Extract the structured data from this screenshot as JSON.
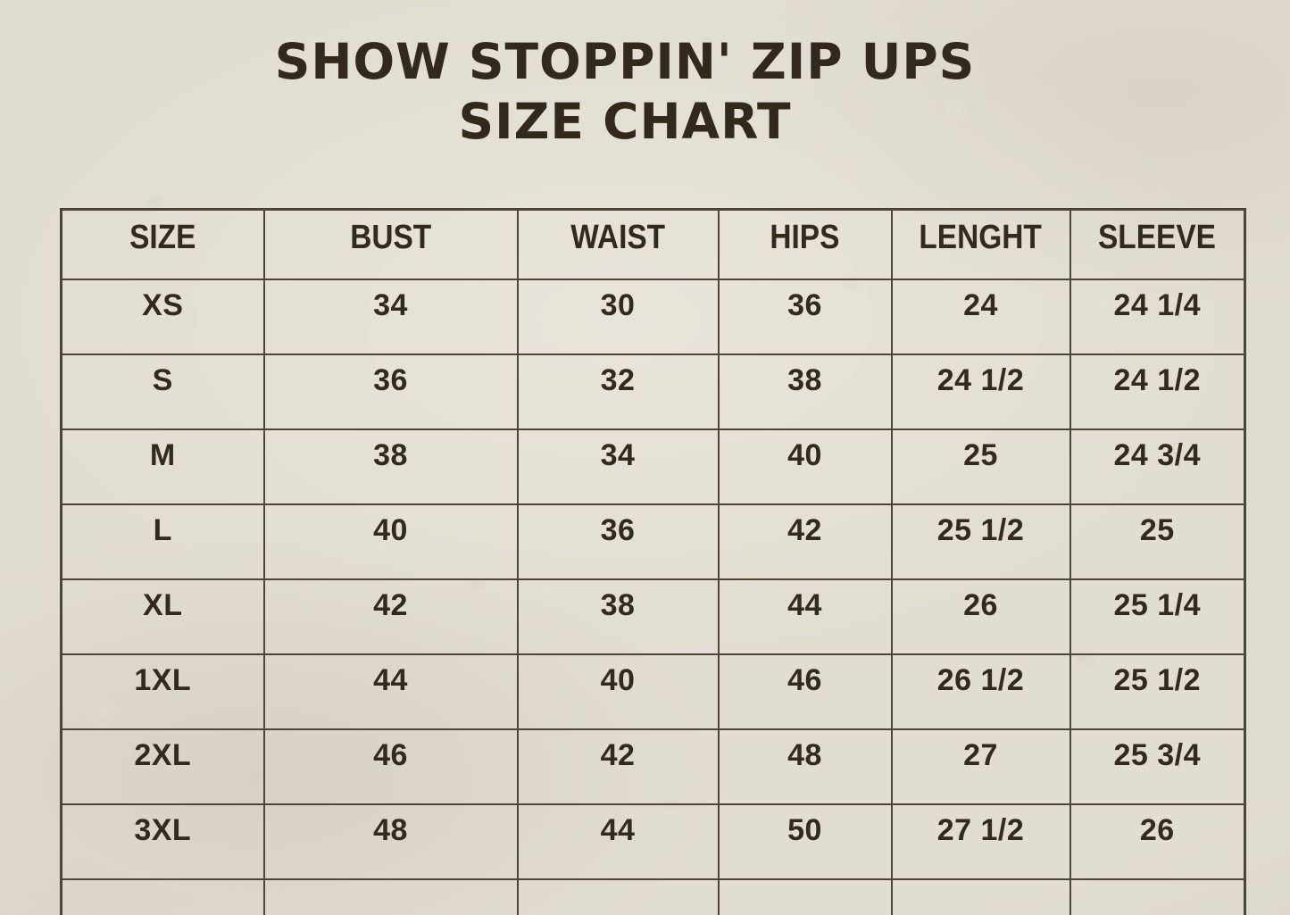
{
  "title": {
    "line1": "SHOW STOPPIN' ZIP UPS",
    "line2": "SIZE CHART"
  },
  "table": {
    "columns": [
      "SIZE",
      "BUST",
      "WAIST",
      "HIPS",
      "LENGHT",
      "SLEEVE"
    ],
    "column_keys": [
      "size",
      "bust",
      "waist",
      "hips",
      "lenght",
      "sleeve"
    ],
    "rows": [
      [
        "XS",
        "34",
        "30",
        "36",
        "24",
        "24 1/4"
      ],
      [
        "S",
        "36",
        "32",
        "38",
        "24 1/2",
        "24 1/2"
      ],
      [
        "M",
        "38",
        "34",
        "40",
        "25",
        "24 3/4"
      ],
      [
        "L",
        "40",
        "36",
        "42",
        "25 1/2",
        "25"
      ],
      [
        "XL",
        "42",
        "38",
        "44",
        "26",
        "25 1/4"
      ],
      [
        "1XL",
        "44",
        "40",
        "46",
        "26 1/2",
        "25 1/2"
      ],
      [
        "2XL",
        "46",
        "42",
        "48",
        "27",
        "25 3/4"
      ],
      [
        "3XL",
        "48",
        "44",
        "50",
        "27 1/2",
        "26"
      ],
      [
        "",
        "",
        "",
        "",
        "",
        ""
      ]
    ]
  },
  "colors": {
    "paper": "#e2ddd1",
    "ink": "#33291d",
    "grid_line": "#4e4437"
  }
}
